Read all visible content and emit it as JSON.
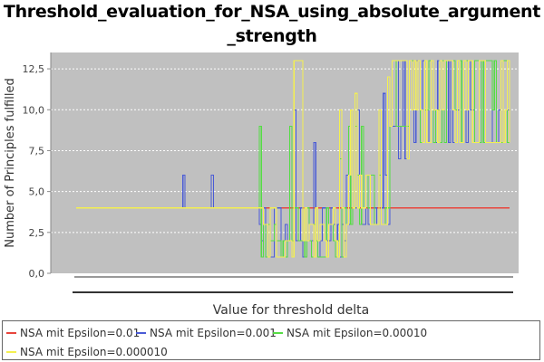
{
  "chart_data": {
    "type": "line",
    "title": "Threshold_evaluation_for_NSA_using_absolute_argument_strength",
    "xlabel": "Value for threshold delta",
    "ylabel": "Number of Principles fulfilled",
    "ylim": [
      0,
      13.5
    ],
    "y_ticks": [
      "0,0",
      "2,5",
      "5,0",
      "7,5",
      "10,0",
      "12,5"
    ],
    "x_tick_labels_visible": false,
    "grid": "horizontal dashed",
    "legend_position": "bottom",
    "series": [
      {
        "name": "NSA mit Epsilon=0.01",
        "color": "#e8453c",
        "values": [
          4,
          4,
          4,
          4,
          4,
          4,
          4,
          4,
          4,
          4,
          4,
          4,
          4,
          4,
          4,
          4,
          4,
          4,
          4,
          4,
          4,
          4,
          4,
          4,
          4,
          4,
          4,
          4,
          4,
          4,
          4,
          4,
          4,
          4,
          4,
          4,
          4,
          4,
          4,
          4,
          4,
          4,
          4,
          4,
          4,
          4,
          4,
          4,
          4,
          4,
          4,
          4,
          4,
          4,
          4,
          4,
          4,
          4,
          4,
          4,
          4,
          4,
          4,
          4,
          4,
          4,
          4,
          4,
          4,
          4,
          4,
          4,
          4,
          4,
          4,
          4,
          4,
          4,
          4,
          4,
          4,
          4,
          4,
          4,
          4,
          4,
          4,
          4,
          4,
          4,
          4,
          4,
          4,
          4,
          4,
          4,
          4,
          4,
          4,
          4,
          4,
          4,
          4,
          4,
          4,
          4,
          4,
          4,
          4,
          4,
          4,
          4,
          4,
          4,
          4,
          4,
          4,
          4,
          4,
          4,
          4,
          4,
          4,
          4,
          4,
          4,
          4,
          4,
          4,
          4,
          4,
          4,
          4,
          4,
          4,
          4,
          4,
          4,
          4,
          4,
          4,
          4,
          4,
          4,
          4,
          4,
          4,
          4,
          4,
          4,
          4,
          4,
          4,
          4,
          4,
          4,
          4,
          4,
          4,
          4,
          4,
          4,
          4,
          4,
          4,
          4,
          4,
          4,
          4,
          4,
          4,
          4,
          4,
          4,
          4,
          4,
          4,
          4,
          4,
          4,
          4,
          4,
          4,
          4,
          4,
          4,
          4,
          4,
          4,
          4,
          4,
          4,
          4,
          4,
          4,
          4,
          4,
          4,
          4,
          4
        ]
      },
      {
        "name": "NSA mit Epsilon=0.001",
        "color": "#4a5bd6",
        "values": []
      },
      {
        "name": "NSA mit Epsilon=0.00010",
        "color": "#55dd44",
        "values": []
      },
      {
        "name": "NSA mit Epsilon=0.000010",
        "color": "#f4f050",
        "values": []
      }
    ]
  }
}
